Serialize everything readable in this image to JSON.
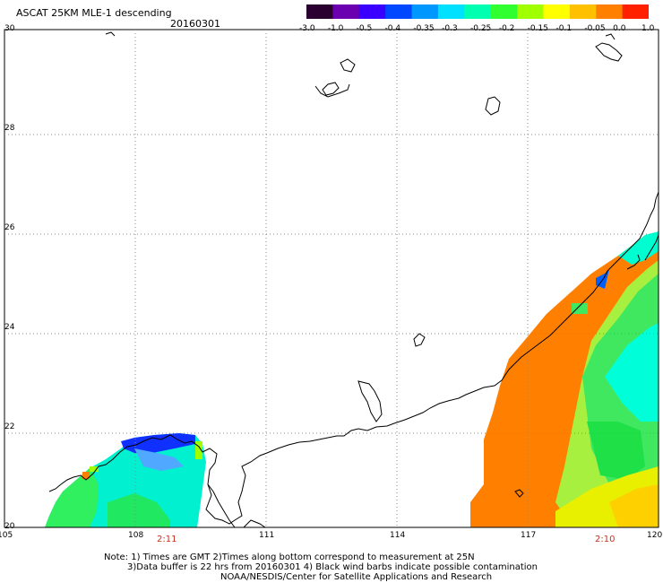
{
  "title": "ASCAT 25KM MLE-1 descending",
  "date": "20160301",
  "colorbar": {
    "labels": [
      "-3.0",
      "-1.0",
      "-0.5",
      "-0.4",
      "-0.35",
      "-0.3",
      "-0.25",
      "-0.2",
      "-0.15",
      "-0.1",
      "-0.05",
      "0.0",
      "1.0"
    ],
    "colors": [
      "#2a0030",
      "#6a00b0",
      "#3a00ff",
      "#0048ff",
      "#0098ff",
      "#00e0ff",
      "#00ffb0",
      "#30ff30",
      "#a0ff00",
      "#ffff00",
      "#ffc000",
      "#ff8000",
      "#ff2000"
    ]
  },
  "axes": {
    "lat_labels": [
      "30",
      "28",
      "26",
      "24",
      "22",
      "20"
    ],
    "lon_labels": [
      "105",
      "108",
      "111",
      "114",
      "117",
      "120"
    ],
    "lat_range": [
      20,
      30
    ],
    "lon_range": [
      105,
      120
    ],
    "grid": "dotted"
  },
  "times": [
    "2:11",
    "2:10"
  ],
  "notes": [
    "Note: 1) Times are GMT 2)Times along bottom correspond to measurement at 25N",
    "3)Data buffer is 22 hrs from 20160301 4) Black wind barbs indicate possible contamination",
    "NOAA/NESDIS/Center for Satellite Applications and Research"
  ],
  "colors": {
    "accent_time": "#c8321e",
    "coast": "#000000",
    "swath_orange": "#ff8000",
    "swath_green": "#40f040",
    "swath_cyan": "#00ffd8",
    "swath_blue": "#0060ff"
  }
}
